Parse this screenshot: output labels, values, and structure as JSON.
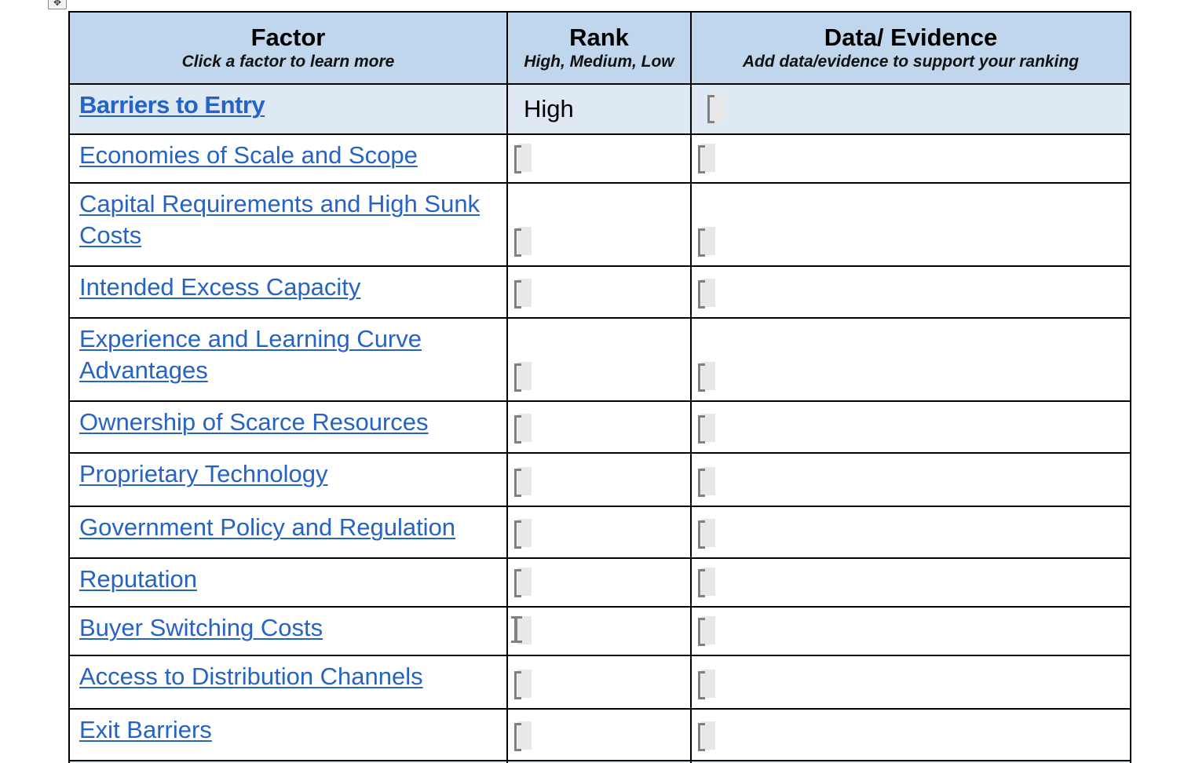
{
  "table": {
    "headers": [
      {
        "title": "Factor",
        "subtitle": "Click a factor to learn more"
      },
      {
        "title": "Rank",
        "subtitle": "High, Medium, Low"
      },
      {
        "title": "Data/ Evidence",
        "subtitle": "Add data/evidence to support your ranking"
      }
    ],
    "rows": [
      {
        "factor": "Barriers to Entry",
        "rank": "High",
        "evidence": ""
      },
      {
        "factor": "Economies of Scale and Scope",
        "rank": "",
        "evidence": ""
      },
      {
        "factor": "Capital Requirements and High Sunk Costs",
        "rank": "",
        "evidence": ""
      },
      {
        "factor": "Intended Excess Capacity",
        "rank": "",
        "evidence": ""
      },
      {
        "factor": "Experience and Learning Curve Advantages",
        "rank": "",
        "evidence": ""
      },
      {
        "factor": "Ownership of Scarce Resources",
        "rank": "",
        "evidence": ""
      },
      {
        "factor": "Proprietary Technology",
        "rank": "",
        "evidence": ""
      },
      {
        "factor": "Government Policy and Regulation",
        "rank": "",
        "evidence": ""
      },
      {
        "factor": "Reputation",
        "rank": "",
        "evidence": ""
      },
      {
        "factor": "Buyer Switching Costs",
        "rank": "",
        "evidence": ""
      },
      {
        "factor": "Access to Distribution Channels",
        "rank": "",
        "evidence": ""
      },
      {
        "factor": "Exit Barriers",
        "rank": "",
        "evidence": ""
      }
    ],
    "link_color": "#2563c4",
    "header_color": "#c0d6ec",
    "selected_row_color": "#dfe9f4"
  }
}
